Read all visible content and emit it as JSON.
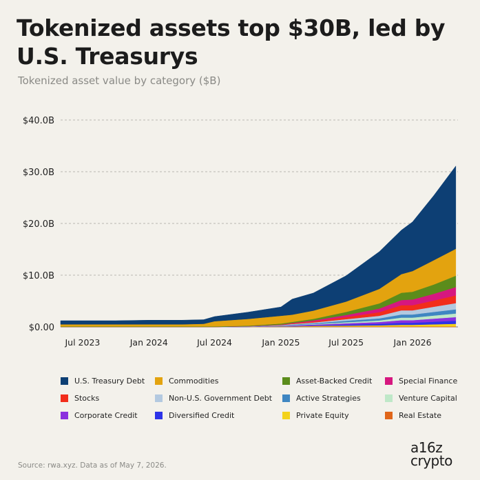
{
  "title": "Tokenized assets top $30B, led by U.S. Treasurys",
  "subtitle": "Tokenized asset value by category ($B)",
  "source": "Source: rwa.xyz. Data as of May 7, 2026.",
  "logo": {
    "line1": "a16z",
    "line2": "crypto"
  },
  "chart_data": {
    "type": "area",
    "stacked": true,
    "title": "Tokenized assets top $30B, led by U.S. Treasurys",
    "subtitle": "Tokenized asset value by category ($B)",
    "x": [
      "2023-05",
      "2023-07",
      "2023-10",
      "2024-01",
      "2024-04",
      "2024-06",
      "2024-07",
      "2024-10",
      "2025-01",
      "2025-02",
      "2025-04",
      "2025-07",
      "2025-10",
      "2025-12",
      "2026-01",
      "2026-03",
      "2026-05"
    ],
    "x_ticks": [
      "Jul 2023",
      "Jan 2024",
      "Jul 2024",
      "Jan 2025",
      "Jul 2025",
      "Jan 2026"
    ],
    "y_ticks": [
      "$0.00",
      "$10.0B",
      "$20.0B",
      "$30.0B",
      "$40.0B"
    ],
    "ylim": [
      0,
      40
    ],
    "grid": true,
    "legend_position": "bottom",
    "series": [
      {
        "name": "Real Estate",
        "color": "#e0661a",
        "values": [
          0,
          0,
          0,
          0,
          0,
          0,
          0,
          0,
          0.05,
          0.05,
          0.1,
          0.1,
          0.1,
          0.1,
          0.1,
          0.1,
          0.1
        ]
      },
      {
        "name": "Private Equity",
        "color": "#f3d21c",
        "values": [
          0,
          0,
          0,
          0,
          0,
          0,
          0,
          0,
          0.05,
          0.05,
          0.1,
          0.15,
          0.2,
          0.3,
          0.3,
          0.4,
          0.5
        ]
      },
      {
        "name": "Diversified Credit",
        "color": "#2c33e8",
        "values": [
          0,
          0,
          0,
          0,
          0,
          0,
          0,
          0.02,
          0.05,
          0.08,
          0.1,
          0.2,
          0.3,
          0.4,
          0.4,
          0.5,
          0.6
        ]
      },
      {
        "name": "Corporate Credit",
        "color": "#8b30de",
        "values": [
          0,
          0,
          0,
          0,
          0,
          0,
          0,
          0.02,
          0.05,
          0.1,
          0.15,
          0.25,
          0.35,
          0.5,
          0.5,
          0.6,
          0.7
        ]
      },
      {
        "name": "Venture Capital",
        "color": "#bfe8c8",
        "values": [
          0,
          0,
          0,
          0,
          0,
          0,
          0,
          0.02,
          0.05,
          0.08,
          0.1,
          0.2,
          0.3,
          0.5,
          0.5,
          0.6,
          0.7
        ]
      },
      {
        "name": "Active Strategies",
        "color": "#3f86c2",
        "values": [
          0,
          0,
          0,
          0,
          0,
          0,
          0,
          0.02,
          0.05,
          0.1,
          0.15,
          0.3,
          0.4,
          0.6,
          0.6,
          0.7,
          0.8
        ]
      },
      {
        "name": "Non-U.S. Government Debt",
        "color": "#b3c9e0",
        "values": [
          0,
          0,
          0,
          0,
          0,
          0,
          0,
          0.02,
          0.05,
          0.1,
          0.15,
          0.3,
          0.5,
          0.8,
          0.8,
          1.0,
          1.2
        ]
      },
      {
        "name": "Stocks",
        "color": "#f22d1b",
        "values": [
          0,
          0,
          0,
          0,
          0,
          0,
          0,
          0.02,
          0.05,
          0.1,
          0.2,
          0.4,
          0.7,
          1.0,
          1.0,
          1.2,
          1.5
        ]
      },
      {
        "name": "Special Finance",
        "color": "#d6177f",
        "values": [
          0,
          0,
          0,
          0,
          0,
          0,
          0,
          0.02,
          0.05,
          0.1,
          0.2,
          0.4,
          0.7,
          1.0,
          1.1,
          1.3,
          1.6
        ]
      },
      {
        "name": "Asset-Backed Credit",
        "color": "#5b8c1b",
        "values": [
          0.1,
          0.1,
          0.1,
          0.1,
          0.1,
          0.1,
          0.1,
          0.1,
          0.2,
          0.2,
          0.3,
          0.6,
          1.0,
          1.4,
          1.5,
          1.8,
          2.2
        ]
      },
      {
        "name": "Commodities",
        "color": "#e3a30f",
        "values": [
          0.4,
          0.4,
          0.4,
          0.4,
          0.4,
          0.5,
          1.0,
          1.3,
          1.5,
          1.4,
          1.6,
          2.0,
          2.8,
          3.6,
          4.0,
          4.7,
          5.2
        ]
      },
      {
        "name": "U.S. Treasury Debt",
        "color": "#0d3f74",
        "values": [
          0.7,
          0.7,
          0.7,
          0.8,
          0.8,
          0.8,
          0.9,
          1.3,
          1.7,
          3.0,
          3.4,
          5.0,
          7.2,
          8.5,
          9.5,
          12.5,
          16.0
        ]
      }
    ]
  },
  "legend": [
    {
      "label": "U.S. Treasury Debt",
      "color": "#0d3f74"
    },
    {
      "label": "Commodities",
      "color": "#e3a30f"
    },
    {
      "label": "Asset-Backed Credit",
      "color": "#5b8c1b"
    },
    {
      "label": "Special Finance",
      "color": "#d6177f"
    },
    {
      "label": "Stocks",
      "color": "#f22d1b"
    },
    {
      "label": "Non-U.S. Government Debt",
      "color": "#b3c9e0"
    },
    {
      "label": "Active Strategies",
      "color": "#3f86c2"
    },
    {
      "label": "Venture Capital",
      "color": "#bfe8c8"
    },
    {
      "label": "Corporate Credit",
      "color": "#8b30de"
    },
    {
      "label": "Diversified Credit",
      "color": "#2c33e8"
    },
    {
      "label": "Private Equity",
      "color": "#f3d21c"
    },
    {
      "label": "Real Estate",
      "color": "#e0661a"
    }
  ]
}
